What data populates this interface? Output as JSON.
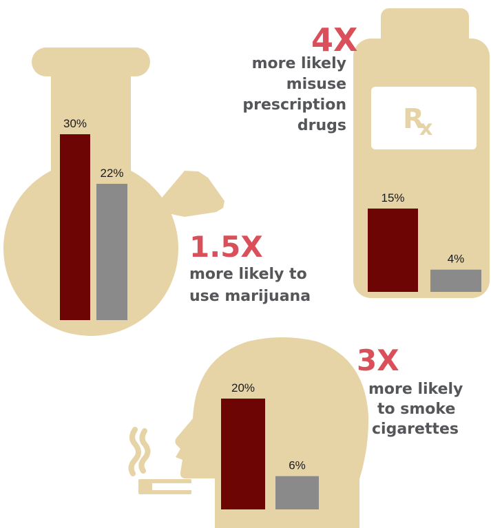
{
  "colors": {
    "shape": "#e6d3a6",
    "primary_bar": "#6e0505",
    "secondary_bar": "#8a8a8a",
    "multiplier": "#d9505a",
    "caption_text": "#555659",
    "label": "#ffffff"
  },
  "icons": [
    "beaker-bong-icon",
    "pill-bottle-icon",
    "prescription-rx-icon",
    "head-silhouette-icon",
    "cigarette-icon",
    "smoke-icon"
  ],
  "chart_data": [
    {
      "type": "bar",
      "categories": [
        "1",
        "2"
      ],
      "values": [
        30,
        22
      ],
      "value_labels": [
        "30%",
        "22%"
      ],
      "ylim": [
        0,
        33
      ],
      "multiplier": "1.5X",
      "caption_lines": [
        "more likely to",
        "use marijuana"
      ]
    },
    {
      "type": "bar",
      "categories": [
        "1",
        "2"
      ],
      "values": [
        15,
        4
      ],
      "value_labels": [
        "15%",
        "4%"
      ],
      "ylim": [
        0,
        33
      ],
      "multiplier": "4X",
      "caption_lines": [
        "more likely",
        "misuse",
        "prescription",
        "drugs"
      ],
      "label_text": "Rx"
    },
    {
      "type": "bar",
      "categories": [
        "1",
        "2"
      ],
      "values": [
        20,
        6
      ],
      "value_labels": [
        "20%",
        "6%"
      ],
      "ylim": [
        0,
        33
      ],
      "multiplier": "3X",
      "caption_lines": [
        "more likely",
        "to smoke",
        "cigarettes"
      ]
    }
  ]
}
